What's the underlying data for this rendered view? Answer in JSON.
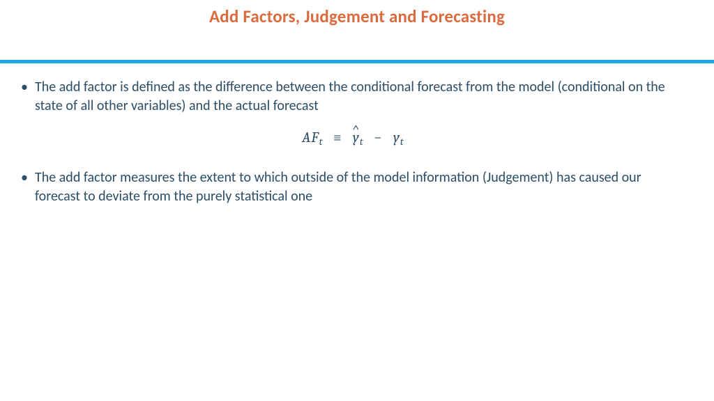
{
  "colors": {
    "title": "#d96b3f",
    "divider": "#1ca8e3",
    "body_text": "#2b4d66",
    "background": "#ffffff"
  },
  "typography": {
    "title_fontsize": 25,
    "title_weight": 700,
    "body_fontsize": 20,
    "equation_fontsize": 21,
    "body_font": "Calibri",
    "equation_font": "Cambria Math"
  },
  "title": "Add Factors, Judgement and Forecasting",
  "bullets": [
    "The add factor is defined as the difference between the conditional forecast from the model (conditional on the state of all other variables) and the actual forecast",
    "The add factor measures the extent to which outside of the model information (Judgement) has caused our forecast to deviate from the purely statistical one"
  ],
  "equation": {
    "lhs_sym": "AF",
    "lhs_sub": "t",
    "equiv": "≡",
    "rhs1_sym": "y",
    "rhs1_sub": "t",
    "minus": "−",
    "rhs2_sym": "y",
    "rhs2_sub": "t"
  }
}
